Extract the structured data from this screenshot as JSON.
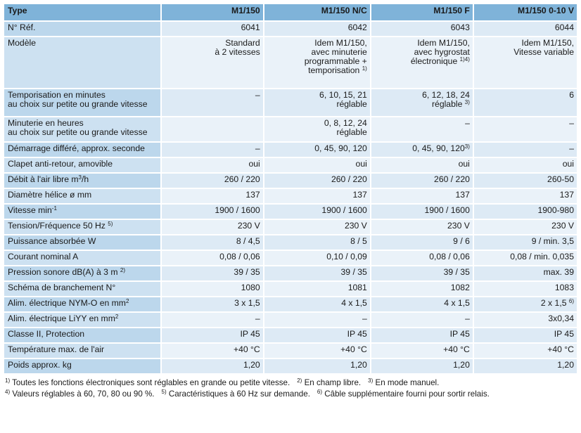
{
  "header": {
    "label": "Type",
    "columns": [
      "M1/150",
      "M1/150 N/C",
      "M1/150 F",
      "M1/150 0-10 V"
    ]
  },
  "rows": [
    {
      "label": "N° Réf.",
      "values": [
        "6041",
        "6042",
        "6043",
        "6044"
      ],
      "h": 20
    },
    {
      "label": "Modèle",
      "values": [
        "Standard\nà 2 vitesses",
        "Idem M1/150,\navec minuterie\nprogrammable +\ntemporisation ¹⁾",
        "Idem M1/150,\navec hygrostat\nélectronique ¹⁾⁴⁾",
        "Idem M1/150,\nVitesse variable"
      ],
      "h": 72
    },
    {
      "label": "Temporisation en minutes\nau choix sur petite ou grande vitesse",
      "values": [
        "–",
        "6, 10, 15, 21\nréglable",
        "6, 12, 18, 24\nréglable ³⁾",
        "6"
      ],
      "h": 38
    },
    {
      "label": "Minuterie en heures\nau choix sur petite ou grande vitesse",
      "values": [
        "",
        "0, 8, 12, 24\nréglable",
        "–",
        "–"
      ],
      "h": 34
    },
    {
      "label": "Démarrage différé, approx. seconde",
      "values": [
        "–",
        "0, 45, 90, 120",
        "0, 45, 90, 120³⁾",
        "–"
      ],
      "h": 20
    },
    {
      "label": "Clapet anti-retour, amovible",
      "values": [
        "oui",
        "oui",
        "oui",
        "oui"
      ],
      "h": 20
    },
    {
      "label": "Débit à l'air libre m³/h",
      "values": [
        "260 / 220",
        "260 / 220",
        "260 / 220",
        "260-50"
      ],
      "h": 20
    },
    {
      "label": "Diamètre hélice ø mm",
      "values": [
        "137",
        "137",
        "137",
        "137"
      ],
      "h": 20
    },
    {
      "label": "Vitesse min⁻¹",
      "values": [
        "1900 / 1600",
        "1900 / 1600",
        "1900 / 1600",
        "1900-980"
      ],
      "h": 20
    },
    {
      "label": "Tension/Fréquence 50 Hz ⁵⁾",
      "values": [
        "230 V",
        "230 V",
        "230 V",
        "230 V"
      ],
      "h": 20
    },
    {
      "label": "Puissance absorbée W",
      "values": [
        "8 / 4,5",
        "8 / 5",
        "9 / 6",
        "9 / min. 3,5"
      ],
      "h": 20
    },
    {
      "label": "Courant nominal A",
      "values": [
        "0,08 / 0,06",
        "0,10 / 0,09",
        "0,08 / 0,06",
        "0,08 / min. 0,035"
      ],
      "h": 20
    },
    {
      "label": "Pression sonore dB(A) à 3 m ²⁾",
      "values": [
        "39 / 35",
        "39 / 35",
        "39 / 35",
        "max. 39"
      ],
      "h": 20
    },
    {
      "label": "Schéma de branchement N°",
      "values": [
        "1080",
        "1081",
        "1082",
        "1083"
      ],
      "h": 20
    },
    {
      "label": "Alim. électrique NYM-O en mm²",
      "values": [
        "3 x 1,5",
        "4 x 1,5",
        "4 x 1,5",
        "2 x 1,5 ⁶⁾"
      ],
      "h": 20
    },
    {
      "label": "Alim. électrique LiYY en mm²",
      "values": [
        "–",
        "–",
        "–",
        "3x0,34"
      ],
      "h": 20
    },
    {
      "label": "Classe II, Protection",
      "values": [
        "IP 45",
        "IP 45",
        "IP 45",
        "IP 45"
      ],
      "h": 20
    },
    {
      "label": "Température max. de l'air",
      "values": [
        "+40 °C",
        "+40 °C",
        "+40 °C",
        "+40 °C"
      ],
      "h": 20
    },
    {
      "label": "Poids approx. kg",
      "values": [
        "1,20",
        "1,20",
        "1,20",
        "1,20"
      ],
      "h": 20
    }
  ],
  "footnotes": [
    [
      "¹⁾ Toutes les fonctions électroniques sont réglables en grande ou petite vitesse.",
      "²⁾ En champ libre.",
      "³⁾ En mode manuel."
    ],
    [
      "⁴⁾ Valeurs réglables à 60, 70, 80 ou 90 %.",
      "⁵⁾ Caractéristiques à 60 Hz sur demande.",
      "⁶⁾ Câble supplémentaire fourni pour sortir relais."
    ]
  ]
}
